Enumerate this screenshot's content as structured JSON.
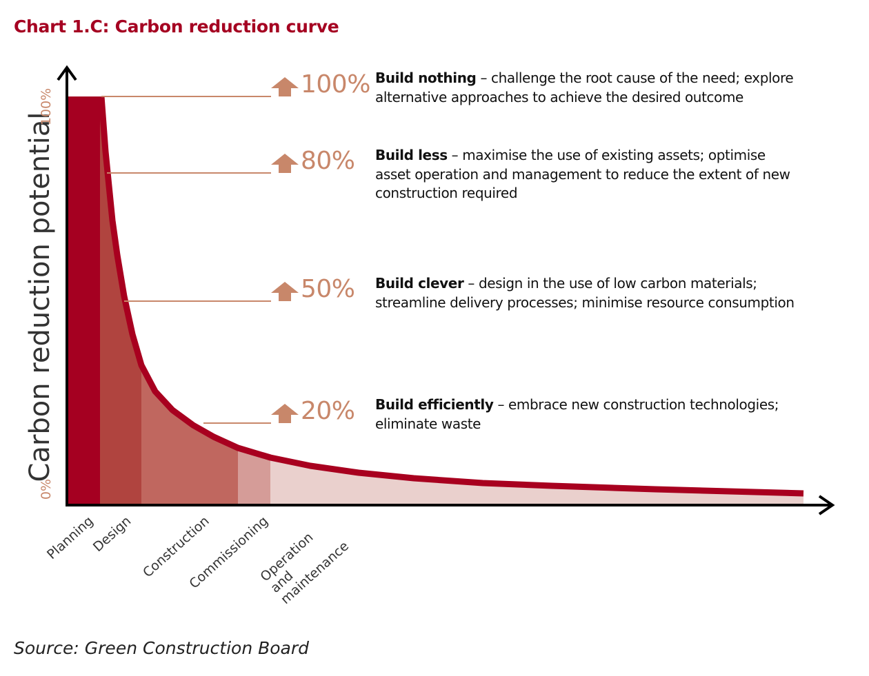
{
  "title": "Chart 1.C: Carbon reduction curve",
  "source": "Source: Green Construction Board",
  "chart_data": {
    "type": "area",
    "title": "Chart 1.C: Carbon reduction curve",
    "ylabel": "Carbon reduction potential",
    "ytick_labels": [
      "0%",
      "100%"
    ],
    "ylim": [
      0,
      100
    ],
    "categories": [
      "Planning",
      "Design",
      "Construction",
      "Commissioning",
      "Operation and maintenance"
    ],
    "stage_colors": [
      "#a50021",
      "#b0443f",
      "#c0675f",
      "#d59c98",
      "#ead0cd"
    ],
    "curve_color": "#a8001f",
    "levels": [
      {
        "value": "100%",
        "lead": "Build nothing",
        "lines": [
          "– challenge the root cause of the need; explore",
          "alternative approaches to achieve the desired outcome"
        ]
      },
      {
        "value": "80%",
        "lead": "Build less",
        "lines": [
          "– maximise the use of existing assets; optimise",
          "asset operation and management to reduce the extent of new",
          "construction required"
        ]
      },
      {
        "value": "50%",
        "lead": "Build clever",
        "lines": [
          "– design in the use of low carbon materials;",
          "streamline delivery processes; minimise resource consumption"
        ]
      },
      {
        "value": "20%",
        "lead": "Build efficiently",
        "lines": [
          "– embrace new construction technologies;",
          "eliminate waste"
        ]
      }
    ],
    "accent_color": "#c8876a",
    "grid": false,
    "legend": "none"
  }
}
